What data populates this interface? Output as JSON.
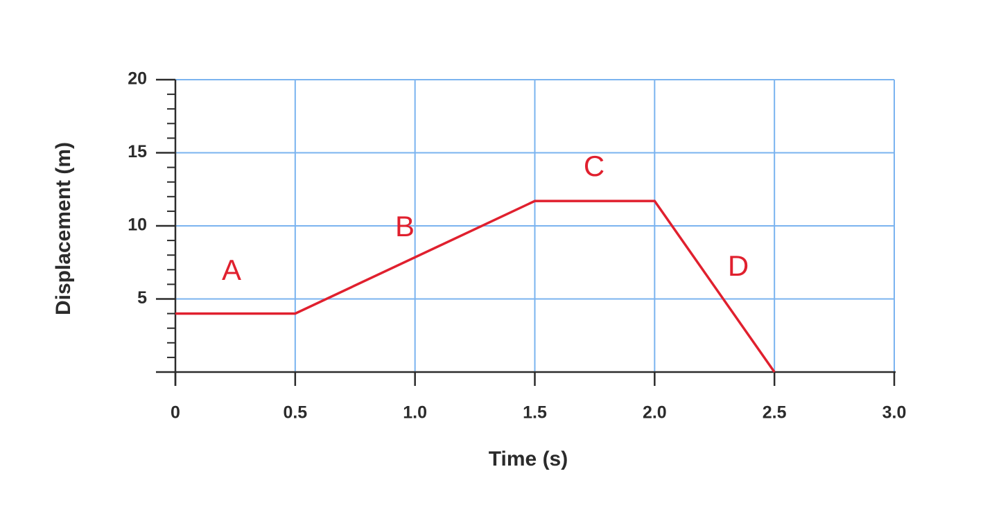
{
  "chart_data": {
    "type": "line",
    "x_label": "Time (s)",
    "y_label": "Displacement (m)",
    "x": [
      0,
      0.5,
      1.5,
      2.0,
      2.5
    ],
    "series": [
      {
        "color": "#e0202e",
        "values": [
          4,
          4,
          11.7,
          11.7,
          0
        ]
      }
    ],
    "xlim": [
      0,
      3
    ],
    "ylim": [
      0,
      20
    ],
    "xticks": [
      0,
      0.5,
      {
        "value": 1,
        "label": "1.0"
      },
      1.5,
      {
        "value": 2,
        "label": "2.0"
      },
      2.5,
      {
        "value": 3,
        "label": "3.0"
      }
    ],
    "yticks": [
      5,
      10,
      15,
      20
    ],
    "yminorticks": [
      0,
      1,
      2,
      3,
      4,
      5,
      6,
      7,
      8,
      9,
      10,
      11,
      12,
      13,
      14,
      15,
      16,
      17,
      18,
      19,
      20
    ],
    "grid": true,
    "grid_color": "#7ab3ef",
    "annotations": [
      "A",
      "B",
      "C",
      "D"
    ]
  }
}
